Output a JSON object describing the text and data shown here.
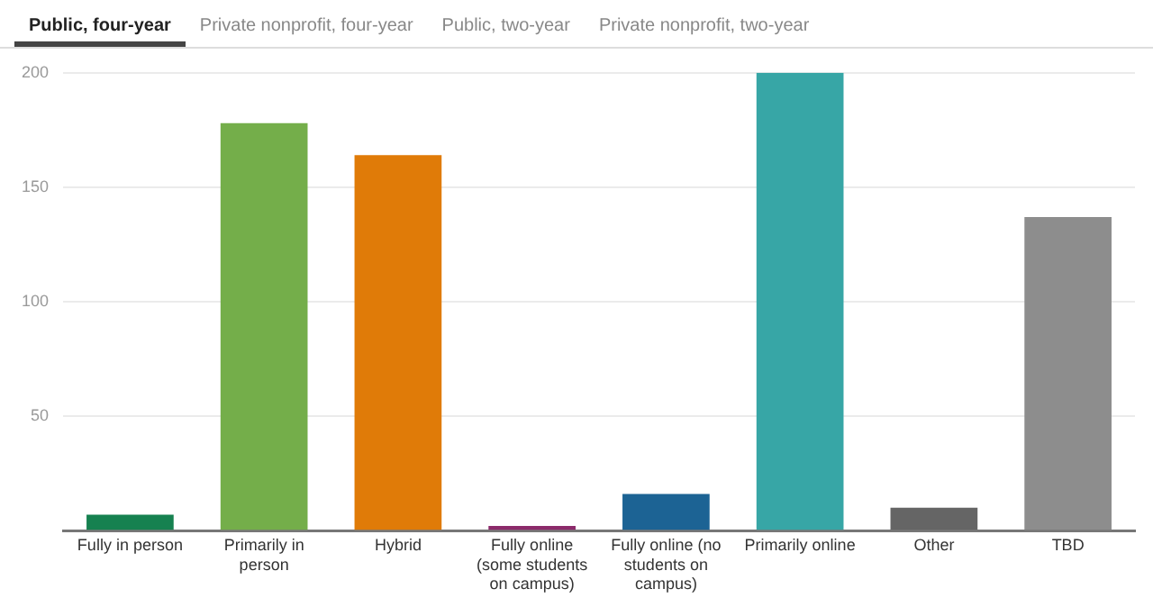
{
  "chart_data": {
    "type": "bar",
    "categories": [
      "Fully in person",
      "Primarily in person",
      "Hybrid",
      "Fully online (some students on campus)",
      "Fully online (no students on campus)",
      "Primarily online",
      "Other",
      "TBD"
    ],
    "values": [
      7,
      178,
      164,
      2,
      16,
      200,
      10,
      137
    ],
    "colors": [
      "#168150",
      "#74ae4a",
      "#e07b08",
      "#8c2a6b",
      "#1c6394",
      "#37a6a6",
      "#656565",
      "#8d8d8d"
    ],
    "ylim": [
      0,
      200
    ],
    "yticks": [
      {
        "value": 0,
        "label": null
      },
      50,
      100,
      150,
      200
    ],
    "grid": "y",
    "legend": false,
    "annotations": [
      "Public, four-year",
      "Private nonprofit, four-year",
      "Public, two-year",
      "Private nonprofit, two-year"
    ]
  }
}
